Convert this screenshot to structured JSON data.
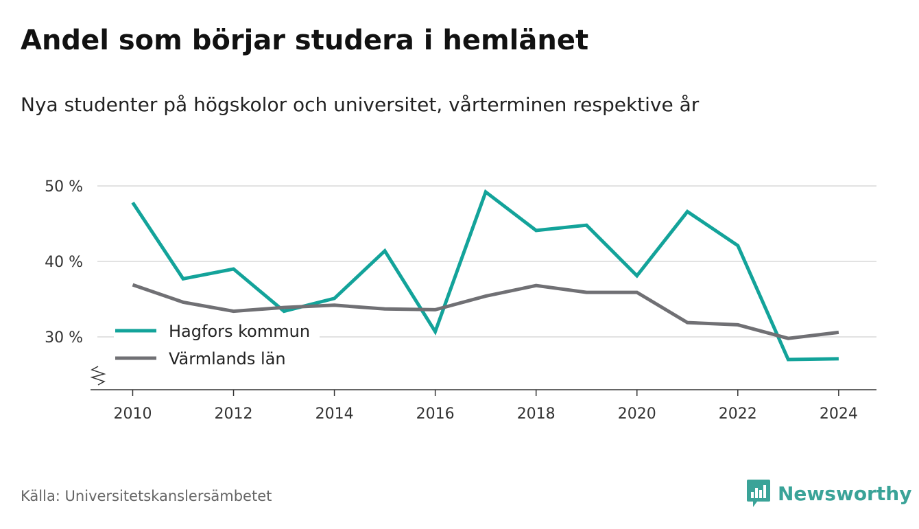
{
  "header": {
    "title": "Andel som börjar studera i hemlänet",
    "subtitle": "Nya studenter på högskolor och universitet, vårterminen respektive år"
  },
  "footer": {
    "source": "Källa: Universitetskanslersämbetet",
    "brand": "Newsworthy"
  },
  "chart_data": {
    "type": "line",
    "x": [
      2010,
      2011,
      2012,
      2013,
      2014,
      2015,
      2016,
      2017,
      2018,
      2019,
      2020,
      2021,
      2022,
      2023,
      2024
    ],
    "series": [
      {
        "name": "Hagfors kommun",
        "color": "#13a39a",
        "values": [
          47.8,
          37.7,
          39.0,
          33.4,
          35.1,
          41.4,
          30.7,
          49.2,
          44.1,
          44.8,
          38.1,
          46.6,
          42.1,
          27.0,
          27.1
        ]
      },
      {
        "name": "Värmlands län",
        "color": "#707074",
        "values": [
          36.9,
          34.6,
          33.4,
          33.9,
          34.2,
          33.7,
          33.6,
          35.4,
          36.8,
          35.9,
          35.9,
          31.9,
          31.6,
          29.8,
          30.6
        ]
      }
    ],
    "yticks": [
      {
        "value": 30,
        "label": "30 %"
      },
      {
        "value": 40,
        "label": "40 %"
      },
      {
        "value": 50,
        "label": "50 %"
      }
    ],
    "xticks": [
      {
        "value": 2010,
        "label": "2010"
      },
      {
        "value": 2012,
        "label": "2012"
      },
      {
        "value": 2014,
        "label": "2014"
      },
      {
        "value": 2016,
        "label": "2016"
      },
      {
        "value": 2018,
        "label": "2018"
      },
      {
        "value": 2020,
        "label": "2020"
      },
      {
        "value": 2022,
        "label": "2022"
      },
      {
        "value": 2024,
        "label": "2024"
      }
    ],
    "xlim": [
      2009.3,
      2024.75
    ],
    "ylim": [
      23,
      51
    ],
    "grid": true,
    "y_axis_break": true,
    "legend_position": "lower-left"
  }
}
